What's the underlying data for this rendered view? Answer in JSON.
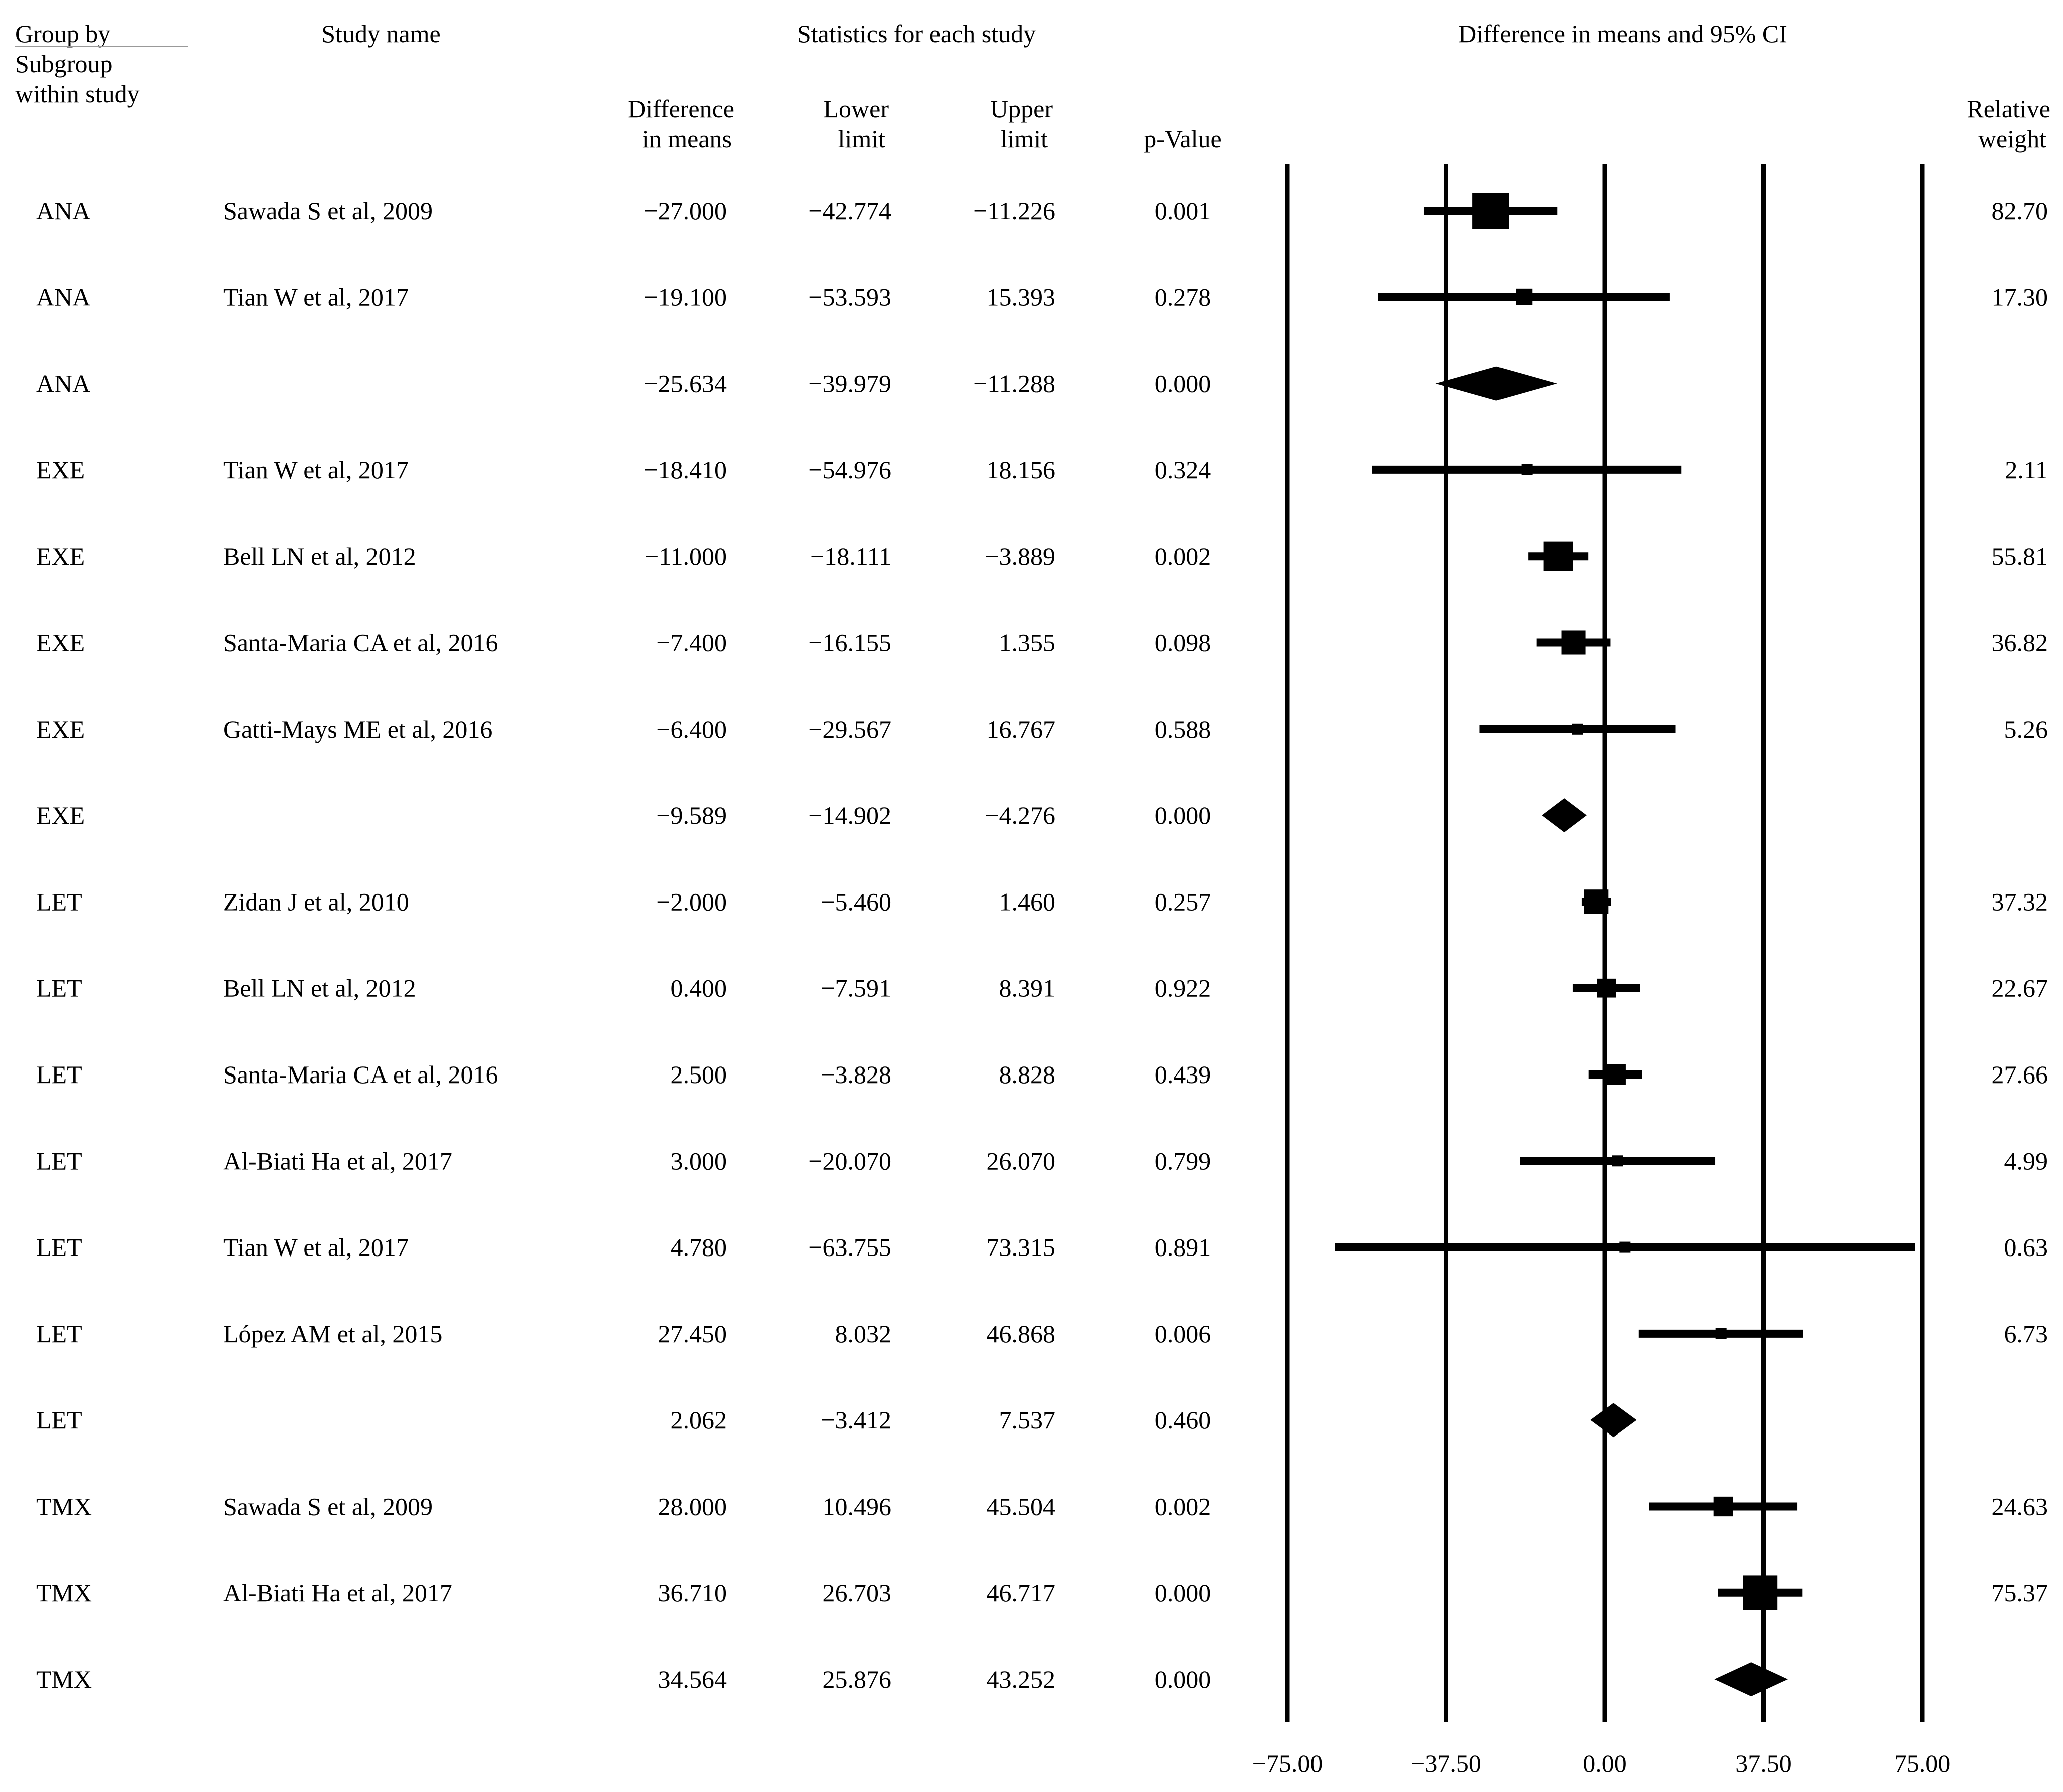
{
  "headers": {
    "group": [
      "Group by",
      "Subgroup",
      "within study"
    ],
    "study": "Study name",
    "stats": "Statistics for each study",
    "diff": [
      "Difference",
      "in means"
    ],
    "lower": [
      "Lower",
      "limit"
    ],
    "upper": [
      "Upper",
      "limit"
    ],
    "pvalue": "p-Value",
    "ci": "Difference in means and 95% CI",
    "weight": [
      "Relative",
      "weight"
    ]
  },
  "chart_data": {
    "type": "forest",
    "title": "Difference in means and 95% CI",
    "xlim": [
      -75,
      75
    ],
    "xticks": [
      -75,
      -37.5,
      0,
      37.5,
      75
    ],
    "xtick_labels": [
      "−75.00",
      "−37.50",
      "0.00",
      "37.50",
      "75.00"
    ],
    "rows": [
      {
        "group": "ANA",
        "study": "Sawada S et al, 2009",
        "diff": -27.0,
        "lower": -42.774,
        "upper": -11.226,
        "p": "0.001",
        "weight": "82.70",
        "diff_s": "−27.000",
        "lower_s": "−42.774",
        "upper_s": "−11.226",
        "kind": "study"
      },
      {
        "group": "ANA",
        "study": "Tian W et al, 2017",
        "diff": -19.1,
        "lower": -53.593,
        "upper": 15.393,
        "p": "0.278",
        "weight": "17.30",
        "diff_s": "−19.100",
        "lower_s": "−53.593",
        "upper_s": "15.393",
        "kind": "study"
      },
      {
        "group": "ANA",
        "study": "",
        "diff": -25.634,
        "lower": -39.979,
        "upper": -11.288,
        "p": "0.000",
        "weight": "",
        "diff_s": "−25.634",
        "lower_s": "−39.979",
        "upper_s": "−11.288",
        "kind": "summary"
      },
      {
        "group": "EXE",
        "study": "Tian W et al, 2017",
        "diff": -18.41,
        "lower": -54.976,
        "upper": 18.156,
        "p": "0.324",
        "weight": "2.11",
        "diff_s": "−18.410",
        "lower_s": "−54.976",
        "upper_s": "18.156",
        "kind": "study"
      },
      {
        "group": "EXE",
        "study": "Bell LN et al, 2012",
        "diff": -11.0,
        "lower": -18.111,
        "upper": -3.889,
        "p": "0.002",
        "weight": "55.81",
        "diff_s": "−11.000",
        "lower_s": "−18.111",
        "upper_s": "−3.889",
        "kind": "study"
      },
      {
        "group": "EXE",
        "study": "Santa-Maria CA et al, 2016",
        "diff": -7.4,
        "lower": -16.155,
        "upper": 1.355,
        "p": "0.098",
        "weight": "36.82",
        "diff_s": "−7.400",
        "lower_s": "−16.155",
        "upper_s": "1.355",
        "kind": "study"
      },
      {
        "group": "EXE",
        "study": "Gatti-Mays ME et al, 2016",
        "diff": -6.4,
        "lower": -29.567,
        "upper": 16.767,
        "p": "0.588",
        "weight": "5.26",
        "diff_s": "−6.400",
        "lower_s": "−29.567",
        "upper_s": "16.767",
        "kind": "study"
      },
      {
        "group": "EXE",
        "study": "",
        "diff": -9.589,
        "lower": -14.902,
        "upper": -4.276,
        "p": "0.000",
        "weight": "",
        "diff_s": "−9.589",
        "lower_s": "−14.902",
        "upper_s": "−4.276",
        "kind": "summary"
      },
      {
        "group": "LET",
        "study": "Zidan J et al, 2010",
        "diff": -2.0,
        "lower": -5.46,
        "upper": 1.46,
        "p": "0.257",
        "weight": "37.32",
        "diff_s": "−2.000",
        "lower_s": "−5.460",
        "upper_s": "1.460",
        "kind": "study"
      },
      {
        "group": "LET",
        "study": "Bell LN et al, 2012",
        "diff": 0.4,
        "lower": -7.591,
        "upper": 8.391,
        "p": "0.922",
        "weight": "22.67",
        "diff_s": "0.400",
        "lower_s": "−7.591",
        "upper_s": "8.391",
        "kind": "study"
      },
      {
        "group": "LET",
        "study": "Santa-Maria CA et al, 2016",
        "diff": 2.5,
        "lower": -3.828,
        "upper": 8.828,
        "p": "0.439",
        "weight": "27.66",
        "diff_s": "2.500",
        "lower_s": "−3.828",
        "upper_s": "8.828",
        "kind": "study"
      },
      {
        "group": "LET",
        "study": "Al-Biati Ha et al, 2017",
        "diff": 3.0,
        "lower": -20.07,
        "upper": 26.07,
        "p": "0.799",
        "weight": "4.99",
        "diff_s": "3.000",
        "lower_s": "−20.070",
        "upper_s": "26.070",
        "kind": "study"
      },
      {
        "group": "LET",
        "study": "Tian W et al, 2017",
        "diff": 4.78,
        "lower": -63.755,
        "upper": 73.315,
        "p": "0.891",
        "weight": "0.63",
        "diff_s": "4.780",
        "lower_s": "−63.755",
        "upper_s": "73.315",
        "kind": "study"
      },
      {
        "group": "LET",
        "study": "López AM et al, 2015",
        "diff": 27.45,
        "lower": 8.032,
        "upper": 46.868,
        "p": "0.006",
        "weight": "6.73",
        "diff_s": "27.450",
        "lower_s": "8.032",
        "upper_s": "46.868",
        "kind": "study"
      },
      {
        "group": "LET",
        "study": "",
        "diff": 2.062,
        "lower": -3.412,
        "upper": 7.537,
        "p": "0.460",
        "weight": "",
        "diff_s": "2.062",
        "lower_s": "−3.412",
        "upper_s": "7.537",
        "kind": "summary"
      },
      {
        "group": "TMX",
        "study": "Sawada S et al, 2009",
        "diff": 28.0,
        "lower": 10.496,
        "upper": 45.504,
        "p": "0.002",
        "weight": "24.63",
        "diff_s": "28.000",
        "lower_s": "10.496",
        "upper_s": "45.504",
        "kind": "study"
      },
      {
        "group": "TMX",
        "study": "Al-Biati Ha et al, 2017",
        "diff": 36.71,
        "lower": 26.703,
        "upper": 46.717,
        "p": "0.000",
        "weight": "75.37",
        "diff_s": "36.710",
        "lower_s": "26.703",
        "upper_s": "46.717",
        "kind": "study"
      },
      {
        "group": "TMX",
        "study": "",
        "diff": 34.564,
        "lower": 25.876,
        "upper": 43.252,
        "p": "0.000",
        "weight": "",
        "diff_s": "34.564",
        "lower_s": "25.876",
        "upper_s": "43.252",
        "kind": "summary"
      }
    ]
  }
}
